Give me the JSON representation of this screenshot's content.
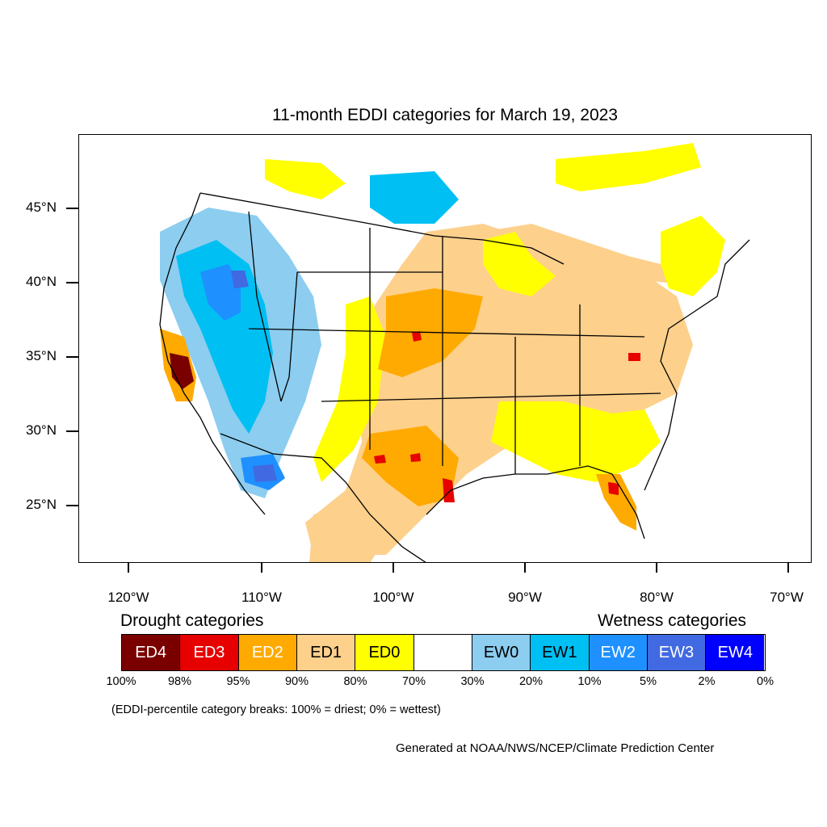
{
  "title": "11-month EDDI categories for March 19, 2023",
  "map": {
    "lat_ticks": [
      "45°N",
      "40°N",
      "35°N",
      "30°N",
      "25°N"
    ],
    "lat_values": [
      45,
      40,
      35,
      30,
      25
    ],
    "lon_ticks": [
      "120°W",
      "110°W",
      "100°W",
      "90°W",
      "80°W",
      "70°W"
    ],
    "lon_values": [
      -120,
      -110,
      -100,
      -90,
      -80,
      -70
    ],
    "extent": {
      "lon": [
        -123.8,
        -68.4
      ],
      "lat": [
        21,
        49.5
      ]
    },
    "colors": {
      "ED4": "#7a0000",
      "ED3": "#e60000",
      "ED2": "#ffaa00",
      "ED1": "#fdd08c",
      "ED0": "#ffff00",
      "neutral": "#ffffff",
      "EW0": "#8ccdf0",
      "EW1": "#00bff3",
      "EW2": "#1e90ff",
      "EW3": "#4169e1",
      "EW4": "#0000ff"
    }
  },
  "legend": {
    "drought_heading": "Drought categories",
    "wetness_heading": "Wetness categories",
    "cells": [
      {
        "label": "ED4",
        "color": "#7a0000",
        "text_color": "#ffffff"
      },
      {
        "label": "ED3",
        "color": "#e60000",
        "text_color": "#ffffff"
      },
      {
        "label": "ED2",
        "color": "#ffaa00",
        "text_color": "#ffffff"
      },
      {
        "label": "ED1",
        "color": "#fdd08c",
        "text_color": "#000000"
      },
      {
        "label": "ED0",
        "color": "#ffff00",
        "text_color": "#000000"
      },
      {
        "label": "",
        "color": "#ffffff",
        "text_color": "#000000"
      },
      {
        "label": "EW0",
        "color": "#8ccdf0",
        "text_color": "#000000"
      },
      {
        "label": "EW1",
        "color": "#00bff3",
        "text_color": "#000000"
      },
      {
        "label": "EW2",
        "color": "#1e90ff",
        "text_color": "#ffffff"
      },
      {
        "label": "EW3",
        "color": "#4169e1",
        "text_color": "#ffffff"
      },
      {
        "label": "EW4",
        "color": "#0000ff",
        "text_color": "#ffffff"
      }
    ],
    "breaks": [
      "100%",
      "98%",
      "95%",
      "90%",
      "80%",
      "70%",
      "30%",
      "20%",
      "10%",
      "5%",
      "2%",
      "0%"
    ]
  },
  "note": "(EDDI-percentile category breaks: 100% = driest; 0% = wettest)",
  "credit": "Generated at NOAA/NWS/NCEP/Climate Prediction Center"
}
